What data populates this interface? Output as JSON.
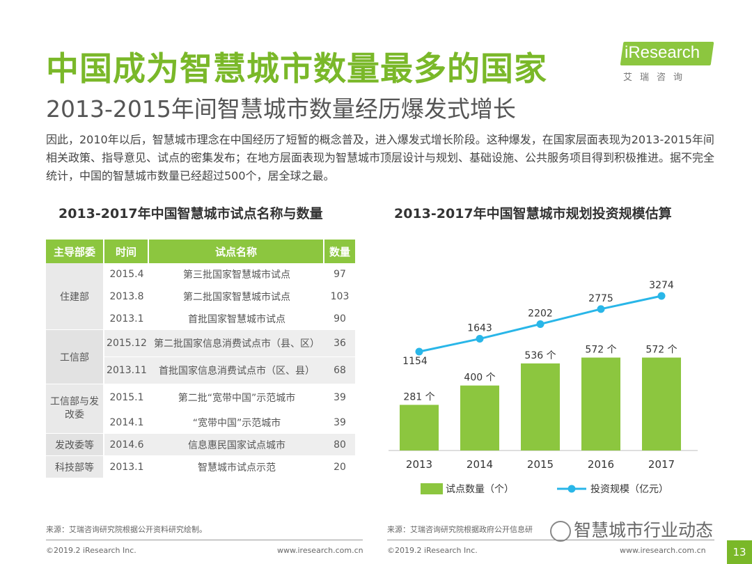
{
  "header": {
    "title": "中国成为智慧城市数量最多的国家",
    "subtitle": "2013-2015年间智慧城市数量经历爆发式增长"
  },
  "logo": {
    "text": "iResearch",
    "cn": "艾瑞咨询"
  },
  "intro": "因此，2010年以后，智慧城市理念在中国经历了短暂的概念普及，进入爆发式增长阶段。这种爆发，在国家层面表现为2013-2015年间相关政策、指导意见、试点的密集发布；在地方层面表现为智慧城市顶层设计与规划、基础设施、公共服务项目得到积极推进。据不完全统计，中国的智慧城市数量已经超过500个，居全球之最。",
  "table": {
    "title": "2013-2017年中国智慧城市试点名称与数量",
    "headers": [
      "主导部委",
      "时间",
      "试点名称",
      "数量"
    ],
    "groups": [
      {
        "dept": "住建部",
        "rows": [
          {
            "time": "2015.4",
            "name": "第三批国家智慧城市试点",
            "count": "97"
          },
          {
            "time": "2013.8",
            "name": "第二批国家智慧城市试点",
            "count": "103"
          },
          {
            "time": "2013.1",
            "name": "首批国家智慧城市试点",
            "count": "90"
          }
        ]
      },
      {
        "dept": "工信部",
        "rows": [
          {
            "time": "2015.12",
            "name": "第二批国家信息消费试点市（县、区）",
            "count": "36"
          },
          {
            "time": "2013.11",
            "name": "首批国家信息消费试点市（区、县）",
            "count": "68"
          }
        ]
      },
      {
        "dept": "工信部与发改委",
        "rows": [
          {
            "time": "2015.1",
            "name": "第二批“宽带中国”示范城市",
            "count": "39"
          },
          {
            "time": "2014.1",
            "name": "“宽带中国”示范城市",
            "count": "39"
          }
        ]
      },
      {
        "dept": "发改委等",
        "rows": [
          {
            "time": "2014.6",
            "name": "信息惠民国家试点城市",
            "count": "80"
          }
        ]
      },
      {
        "dept": "科技部等",
        "rows": [
          {
            "time": "2013.1",
            "name": "智慧城市试点示范",
            "count": "20"
          }
        ]
      }
    ]
  },
  "chart_data": {
    "type": "bar",
    "title": "2013-2017年中国智慧城市规划投资规模估算",
    "categories": [
      "2013",
      "2014",
      "2015",
      "2016",
      "2017"
    ],
    "series": [
      {
        "name": "试点数量（个）",
        "type": "bar",
        "values": [
          281,
          400,
          536,
          572,
          572
        ],
        "labels": [
          "281 个",
          "400 个",
          "536 个",
          "572 个",
          "572 个"
        ],
        "color": "#8cc63f"
      },
      {
        "name": "投资规模（亿元）",
        "type": "line",
        "values": [
          1154,
          1643,
          2202,
          2775,
          3274
        ],
        "labels": [
          "1154",
          "1643",
          "2202",
          "2775",
          "3274"
        ],
        "color": "#29b6e8"
      }
    ],
    "legend": [
      "试点数量（个）",
      "投资规模（亿元）"
    ],
    "legend_position": "bottom",
    "grid": false
  },
  "footer": {
    "source_left": "来源：艾瑞咨询研究院根据公开资料研究绘制。",
    "source_right": "来源：艾瑞咨询研究院根据政府公开信息研",
    "copyright_left": "©2019.2 iResearch Inc.",
    "url_left": "www.iresearch.com.cn",
    "copyright_right": "©2019.2 iResearch Inc.",
    "url_right": "www.iresearch.com.cn",
    "page": "13",
    "watermark": "智慧城市行业动态"
  }
}
